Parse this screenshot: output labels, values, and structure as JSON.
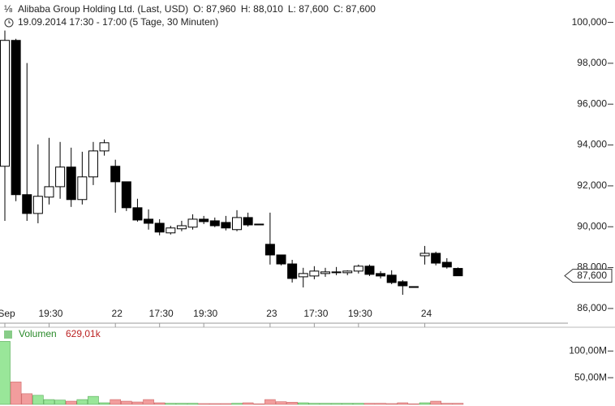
{
  "chart_data": [
    {
      "type": "candlestick",
      "title": "Alibaba Group Holding Ltd. (Last, USD)",
      "quote": [
        "O: 87,960",
        "H: 88,010",
        "L: 87,600",
        "C: 87,600"
      ],
      "subtitle": "19.09.2014 17:30 - 17:00 (5 Tage, 30 Minuten)",
      "categories": [
        "Sep",
        null,
        null,
        null,
        "19:30",
        null,
        null,
        null,
        null,
        null,
        "22",
        null,
        null,
        null,
        "17:30",
        null,
        null,
        null,
        "19:30",
        null,
        null,
        null,
        null,
        null,
        "23",
        null,
        null,
        null,
        "17:30",
        null,
        null,
        null,
        "19:30",
        null,
        null,
        null,
        null,
        null,
        "24",
        null,
        null,
        null
      ],
      "open": [
        92.96,
        99.12,
        91.57,
        90.65,
        91.45,
        91.96,
        92.92,
        91.33,
        92.44,
        93.71,
        92.96,
        92.2,
        90.93,
        90.37,
        90.17,
        89.7,
        89.9,
        89.98,
        90.37,
        90.29,
        90.21,
        89.86,
        90.45,
        90.13,
        89.14,
        88.62,
        88.18,
        87.55,
        87.59,
        87.71,
        87.75,
        87.75,
        87.83,
        88.07,
        87.71,
        87.63,
        87.31,
        87.07,
        88.58,
        88.7,
        88.26,
        87.96
      ],
      "high": [
        99.6,
        99.2,
        98.01,
        94.03,
        94.35,
        94.15,
        93.87,
        93.67,
        94.15,
        94.27,
        93.28,
        92.2,
        91.37,
        90.85,
        90.37,
        90.05,
        90.29,
        90.61,
        90.53,
        90.45,
        90.53,
        90.81,
        90.69,
        90.13,
        90.69,
        88.62,
        88.38,
        87.99,
        88.07,
        87.99,
        88.03,
        87.87,
        88.15,
        88.15,
        87.83,
        87.87,
        87.39,
        87.07,
        89.06,
        88.78,
        88.46,
        88.01
      ],
      "low": [
        90.29,
        91.25,
        90.29,
        90.17,
        91.09,
        91.37,
        90.97,
        91.09,
        92.04,
        93.48,
        90.69,
        90.77,
        90.25,
        89.86,
        89.58,
        89.62,
        89.78,
        89.86,
        90.13,
        89.98,
        89.82,
        89.78,
        90.01,
        90.09,
        88.15,
        88.11,
        87.27,
        87.03,
        87.43,
        87.55,
        87.63,
        87.63,
        87.71,
        87.59,
        87.47,
        87.19,
        86.67,
        87.03,
        88.15,
        88.11,
        87.95,
        87.6
      ],
      "close": [
        99.12,
        91.57,
        90.65,
        91.49,
        91.96,
        92.92,
        91.33,
        92.44,
        93.71,
        94.11,
        92.2,
        90.93,
        90.33,
        90.17,
        89.74,
        89.94,
        90.05,
        90.37,
        90.25,
        90.05,
        89.94,
        90.45,
        90.09,
        90.09,
        88.62,
        88.18,
        87.47,
        87.71,
        87.83,
        87.79,
        87.79,
        87.83,
        88.07,
        87.67,
        87.59,
        87.27,
        87.11,
        87.03,
        88.7,
        88.22,
        88.03,
        87.6
      ],
      "up_color": "#ffffff",
      "down_color": "#000000",
      "ylim": [
        85.4,
        100.5
      ],
      "yticks": [
        {
          "value": 86,
          "label": "86,000"
        },
        {
          "value": 88,
          "label": "88,000"
        },
        {
          "value": 90,
          "label": "90,000"
        },
        {
          "value": 92,
          "label": "92,000"
        },
        {
          "value": 94,
          "label": "94,000"
        },
        {
          "value": 96,
          "label": "96,000"
        },
        {
          "value": 98,
          "label": "98,000"
        },
        {
          "value": 100,
          "label": "100,000"
        }
      ],
      "last": {
        "value": 87.6,
        "label": "87,600"
      }
    },
    {
      "type": "bar",
      "title": "Volumen",
      "total": "629,01k",
      "values": [
        118,
        42,
        20,
        17,
        9,
        8,
        6,
        9,
        15,
        3,
        9,
        6,
        4.5,
        9,
        3,
        2,
        2,
        2,
        1.5,
        1.5,
        1.5,
        2,
        3,
        1,
        9,
        5,
        4,
        3,
        2,
        2,
        2,
        2,
        2,
        2,
        2,
        1.5,
        3,
        1,
        3,
        6,
        2,
        2
      ],
      "up_color": "#99e699",
      "down_color": "#f29d9d",
      "ylim": [
        0,
        141.5
      ],
      "yticks": [
        {
          "value": 50,
          "label": "50,00M"
        },
        {
          "value": 100,
          "label": "100,00M"
        }
      ]
    }
  ]
}
